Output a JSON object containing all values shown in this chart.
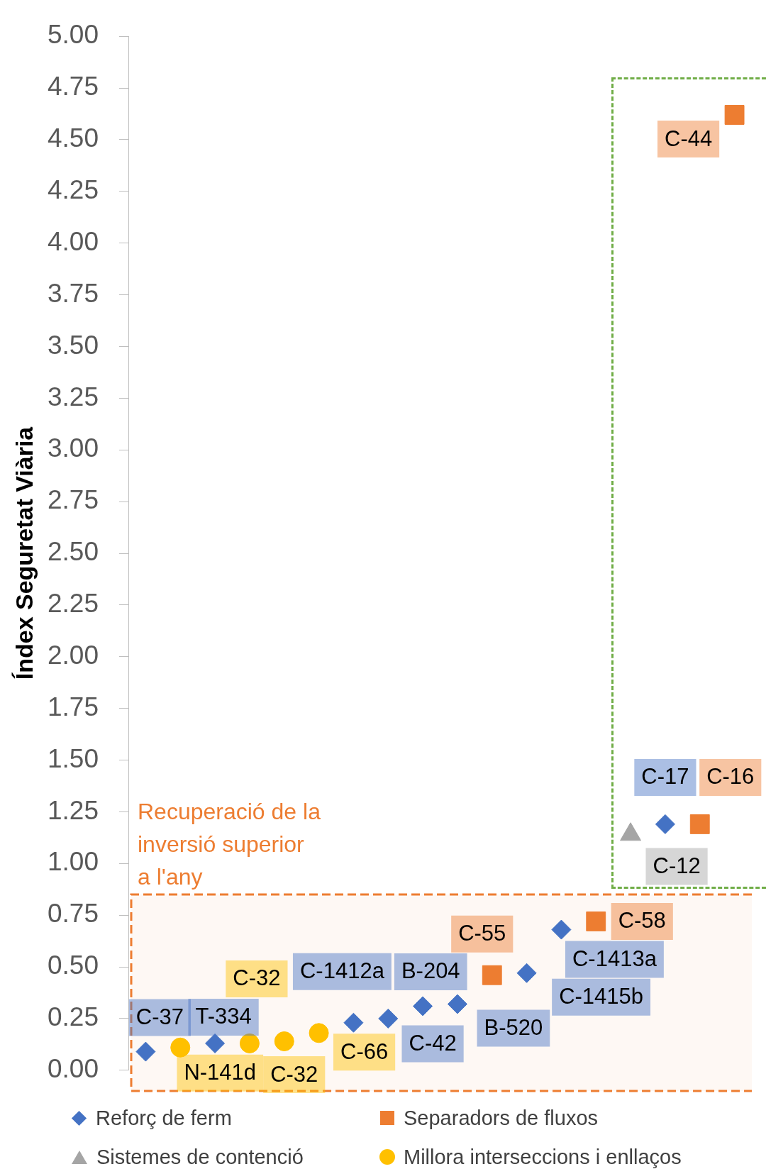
{
  "chart_data": {
    "type": "scatter",
    "ylabel": "Índex Seguretat Viària",
    "categories": [
      null,
      null,
      null,
      null,
      null,
      null,
      null,
      null,
      null,
      null,
      null,
      null,
      null,
      null,
      null,
      null,
      null,
      null
    ],
    "series": [
      {
        "name": "Reforç de ferm",
        "color": "#4472c4",
        "marker": "diamond",
        "values": [
          0.09,
          null,
          0.13,
          null,
          null,
          null,
          0.23,
          0.25,
          0.31,
          0.32,
          null,
          0.47,
          0.68,
          null,
          null,
          1.19,
          null,
          null
        ],
        "value_labels": [
          "C-37",
          null,
          "T-334",
          null,
          null,
          null,
          "C-1412a",
          "B-204",
          "C-42",
          "B-520",
          null,
          "C-1415b",
          "C-1413a",
          null,
          null,
          "C-17",
          null,
          null
        ]
      },
      {
        "name": "Separadors de fluxos",
        "color": "#ed7d31",
        "marker": "square",
        "values": [
          null,
          null,
          null,
          null,
          null,
          null,
          null,
          null,
          null,
          null,
          0.46,
          null,
          null,
          0.72,
          null,
          null,
          1.19,
          4.62
        ],
        "value_labels": [
          null,
          null,
          null,
          null,
          null,
          null,
          null,
          null,
          null,
          null,
          "C-55",
          null,
          null,
          "C-58",
          null,
          null,
          "C-16",
          "C-44"
        ]
      },
      {
        "name": "Sistemes de contenció",
        "color": "#a5a5a5",
        "marker": "triangle",
        "values": [
          null,
          null,
          null,
          null,
          null,
          null,
          null,
          null,
          null,
          null,
          null,
          null,
          null,
          null,
          1.14,
          null,
          null,
          null
        ],
        "value_labels": [
          null,
          null,
          null,
          null,
          null,
          null,
          null,
          null,
          null,
          null,
          null,
          null,
          null,
          null,
          "C-12",
          null,
          null,
          null
        ]
      },
      {
        "name": "Millora interseccions i enllaços",
        "color": "#ffc000",
        "marker": "circle",
        "values": [
          null,
          0.11,
          null,
          0.13,
          0.14,
          0.18,
          null,
          null,
          null,
          null,
          null,
          null,
          null,
          null,
          null,
          null,
          null,
          null
        ],
        "value_labels": [
          null,
          "N-141d",
          null,
          "C-32",
          "C-32",
          "C-66",
          null,
          null,
          null,
          null,
          null,
          null,
          null,
          null,
          null,
          null,
          null,
          null
        ]
      }
    ],
    "ylim": [
      0,
      5
    ],
    "yticks": [
      {
        "value": 0,
        "label": "0.00"
      },
      {
        "value": 0.25,
        "label": "0.25"
      },
      {
        "value": 0.5,
        "label": "0.50"
      },
      {
        "value": 0.75,
        "label": "0.75"
      },
      {
        "value": 1,
        "label": "1.00"
      },
      {
        "value": 1.25,
        "label": "1.25"
      },
      {
        "value": 1.5,
        "label": "1.50"
      },
      {
        "value": 1.75,
        "label": "1.75"
      },
      {
        "value": 2,
        "label": "2.00"
      },
      {
        "value": 2.25,
        "label": "2.25"
      },
      {
        "value": 2.5,
        "label": "2.50"
      },
      {
        "value": 2.75,
        "label": "2.75"
      },
      {
        "value": 3,
        "label": "3.00"
      },
      {
        "value": 3.25,
        "label": "3.25"
      },
      {
        "value": 3.5,
        "label": "3.50"
      },
      {
        "value": 3.75,
        "label": "3.75"
      },
      {
        "value": 4,
        "label": "4.00"
      },
      {
        "value": 4.25,
        "label": "4.25"
      },
      {
        "value": 4.5,
        "label": "4.50"
      },
      {
        "value": 4.75,
        "label": "4.75"
      },
      {
        "value": 5,
        "label": "5.00"
      }
    ],
    "bands": [
      {
        "axis": "y",
        "from": -0.1,
        "to": 0.85,
        "label": "Recuperació de la inversió superior a l'any",
        "color": "#ed7d31"
      }
    ],
    "grid": false,
    "legend": "bottom"
  }
}
